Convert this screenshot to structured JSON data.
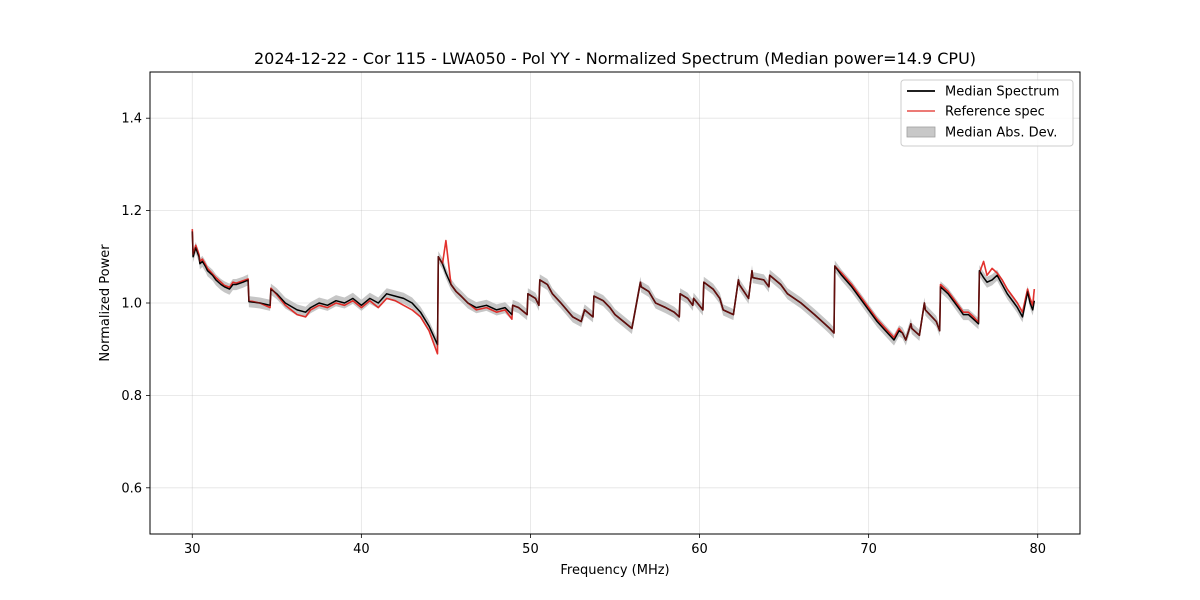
{
  "chart_data": {
    "type": "line",
    "title": "2024-12-22 - Cor 115 - LWA050 - Pol YY - Normalized Spectrum (Median power=14.9 CPU)",
    "xlabel": "Frequency (MHz)",
    "ylabel": "Normalized Power",
    "xlim": [
      27.5,
      82.5
    ],
    "ylim": [
      0.5,
      1.5
    ],
    "xticks": [
      30,
      40,
      50,
      60,
      70,
      80
    ],
    "yticks": [
      0.6,
      0.8,
      1.0,
      1.2,
      1.4
    ],
    "xtick_labels": [
      "30",
      "40",
      "50",
      "60",
      "70",
      "80"
    ],
    "ytick_labels": [
      "0.6",
      "0.8",
      "1.0",
      "1.2",
      "1.4"
    ],
    "grid": true,
    "legend_position": "top-right",
    "colors": {
      "median": "#000000",
      "reference": "#e0201b",
      "mad": "#b8b8b8"
    },
    "series": [
      {
        "name": "Median Spectrum",
        "x": [
          30.0,
          30.05,
          30.2,
          30.4,
          30.45,
          30.6,
          30.8,
          30.9,
          31.2,
          31.4,
          31.7,
          31.9,
          32.2,
          32.4,
          32.6,
          33.0,
          33.3,
          33.35,
          34.0,
          34.6,
          34.65,
          35.0,
          35.5,
          36.2,
          36.7,
          37.0,
          37.5,
          38.0,
          38.5,
          39.0,
          39.5,
          40.0,
          40.5,
          41.0,
          41.5,
          42.0,
          42.5,
          43.0,
          43.5,
          44.0,
          44.5,
          44.55,
          44.8,
          45.0,
          45.3,
          45.6,
          45.9,
          46.3,
          46.8,
          47.4,
          48.0,
          48.5,
          48.9,
          48.95,
          49.3,
          49.8,
          49.85,
          50.3,
          50.5,
          50.55,
          51.0,
          51.3,
          51.8,
          52.5,
          53.0,
          53.2,
          53.7,
          53.75,
          54.3,
          54.7,
          55.0,
          55.5,
          56.0,
          56.5,
          56.55,
          57.0,
          57.4,
          58.0,
          58.5,
          58.8,
          58.85,
          59.3,
          59.6,
          59.65,
          60.2,
          60.25,
          60.8,
          61.2,
          61.4,
          62.0,
          62.3,
          62.35,
          62.9,
          63.1,
          63.15,
          63.8,
          64.1,
          64.15,
          64.8,
          65.2,
          66.0,
          66.8,
          67.4,
          67.7,
          67.95,
          68.0,
          68.4,
          69.0,
          69.5,
          70.0,
          70.5,
          71.0,
          71.5,
          71.8,
          72.0,
          72.2,
          72.5,
          72.55,
          73.0,
          73.3,
          73.35,
          74.0,
          74.2,
          74.25,
          74.7,
          75.0,
          75.3,
          75.6,
          75.9,
          76.2,
          76.5,
          76.55,
          76.8,
          77.0,
          77.3,
          77.6,
          77.9,
          78.2,
          78.6,
          78.8,
          79.1,
          79.4,
          79.55,
          79.7,
          79.8
        ],
        "values": [
          1.155,
          1.1,
          1.12,
          1.1,
          1.085,
          1.09,
          1.078,
          1.07,
          1.06,
          1.05,
          1.04,
          1.035,
          1.03,
          1.04,
          1.04,
          1.045,
          1.05,
          1.003,
          1.0,
          0.995,
          1.03,
          1.02,
          1.0,
          0.985,
          0.98,
          0.99,
          1.0,
          0.995,
          1.005,
          1.0,
          1.01,
          0.995,
          1.01,
          1.0,
          1.02,
          1.015,
          1.01,
          1.0,
          0.98,
          0.95,
          0.91,
          1.1,
          1.085,
          1.065,
          1.04,
          1.025,
          1.015,
          1.0,
          0.99,
          0.995,
          0.985,
          0.99,
          0.975,
          0.995,
          0.99,
          0.975,
          1.02,
          1.01,
          0.995,
          1.05,
          1.04,
          1.02,
          1.0,
          0.97,
          0.96,
          0.985,
          0.97,
          1.015,
          1.005,
          0.99,
          0.975,
          0.96,
          0.945,
          1.045,
          1.035,
          1.025,
          1.0,
          0.99,
          0.98,
          0.97,
          1.02,
          1.01,
          0.995,
          1.01,
          0.985,
          1.045,
          1.03,
          1.01,
          0.985,
          0.975,
          1.05,
          1.04,
          1.01,
          1.07,
          1.055,
          1.05,
          1.035,
          1.06,
          1.04,
          1.02,
          1.0,
          0.975,
          0.955,
          0.945,
          0.935,
          1.08,
          1.06,
          1.035,
          1.01,
          0.985,
          0.96,
          0.94,
          0.92,
          0.94,
          0.935,
          0.92,
          0.955,
          0.945,
          0.93,
          1.0,
          0.985,
          0.96,
          0.94,
          1.035,
          1.02,
          1.005,
          0.99,
          0.975,
          0.975,
          0.965,
          0.955,
          1.07,
          1.055,
          1.045,
          1.05,
          1.06,
          1.04,
          1.02,
          1.0,
          0.99,
          0.97,
          1.025,
          1.0,
          0.985,
          1.005
        ]
      },
      {
        "name": "Reference spec",
        "x": [
          30.0,
          30.05,
          30.2,
          30.4,
          30.45,
          30.6,
          30.8,
          30.9,
          31.2,
          31.4,
          31.7,
          31.9,
          32.2,
          32.4,
          32.6,
          33.0,
          33.3,
          33.35,
          34.0,
          34.6,
          34.65,
          35.0,
          35.5,
          36.2,
          36.7,
          37.0,
          37.5,
          38.0,
          38.5,
          39.0,
          39.5,
          40.0,
          40.5,
          41.0,
          41.5,
          42.0,
          42.5,
          43.0,
          43.5,
          44.0,
          44.5,
          44.55,
          44.8,
          45.0,
          45.3,
          45.6,
          45.9,
          46.3,
          46.8,
          47.4,
          48.0,
          48.5,
          48.9,
          48.95,
          49.3,
          49.8,
          49.85,
          50.3,
          50.5,
          50.55,
          51.0,
          51.3,
          51.8,
          52.5,
          53.0,
          53.2,
          53.7,
          53.75,
          54.3,
          54.7,
          55.0,
          55.5,
          56.0,
          56.5,
          56.55,
          57.0,
          57.4,
          58.0,
          58.5,
          58.8,
          58.85,
          59.3,
          59.6,
          59.65,
          60.2,
          60.25,
          60.8,
          61.2,
          61.4,
          62.0,
          62.3,
          62.35,
          62.9,
          63.1,
          63.15,
          63.8,
          64.1,
          64.15,
          64.8,
          65.2,
          66.0,
          66.8,
          67.4,
          67.7,
          67.95,
          68.0,
          68.4,
          69.0,
          69.5,
          70.0,
          70.5,
          71.0,
          71.5,
          71.8,
          72.0,
          72.2,
          72.5,
          72.55,
          73.0,
          73.3,
          73.35,
          74.0,
          74.2,
          74.25,
          74.7,
          75.0,
          75.3,
          75.6,
          75.9,
          76.2,
          76.5,
          76.55,
          76.8,
          77.0,
          77.3,
          77.6,
          77.9,
          78.2,
          78.6,
          78.8,
          79.1,
          79.4,
          79.55,
          79.7,
          79.8
        ],
        "values": [
          1.16,
          1.105,
          1.125,
          1.105,
          1.09,
          1.095,
          1.082,
          1.075,
          1.063,
          1.055,
          1.045,
          1.038,
          1.034,
          1.045,
          1.043,
          1.048,
          1.052,
          1.005,
          1.0,
          0.99,
          1.032,
          1.018,
          0.995,
          0.975,
          0.97,
          0.985,
          0.995,
          0.99,
          1.0,
          0.995,
          1.005,
          0.99,
          1.005,
          0.99,
          1.01,
          1.005,
          0.995,
          0.985,
          0.97,
          0.94,
          0.89,
          1.1,
          1.085,
          1.135,
          1.04,
          1.025,
          1.015,
          1.0,
          0.985,
          0.99,
          0.98,
          0.985,
          0.965,
          0.995,
          0.99,
          0.975,
          1.02,
          1.01,
          0.995,
          1.05,
          1.04,
          1.02,
          1.0,
          0.97,
          0.96,
          0.985,
          0.97,
          1.015,
          1.005,
          0.99,
          0.975,
          0.96,
          0.945,
          1.045,
          1.035,
          1.025,
          1.0,
          0.99,
          0.98,
          0.97,
          1.02,
          1.01,
          0.995,
          1.01,
          0.985,
          1.045,
          1.03,
          1.01,
          0.985,
          0.975,
          1.05,
          1.04,
          1.01,
          1.07,
          1.055,
          1.05,
          1.035,
          1.06,
          1.04,
          1.02,
          1.0,
          0.975,
          0.955,
          0.945,
          0.935,
          1.08,
          1.065,
          1.04,
          1.015,
          0.99,
          0.965,
          0.945,
          0.925,
          0.945,
          0.935,
          0.92,
          0.955,
          0.945,
          0.93,
          1.0,
          0.985,
          0.96,
          0.94,
          1.04,
          1.025,
          1.01,
          0.995,
          0.98,
          0.98,
          0.97,
          0.958,
          1.065,
          1.09,
          1.06,
          1.075,
          1.065,
          1.05,
          1.03,
          1.01,
          1.0,
          0.98,
          1.03,
          1.01,
          0.995,
          1.03
        ]
      }
    ],
    "mad_band": {
      "name": "Median Abs. Dev.",
      "width": 0.012
    }
  }
}
